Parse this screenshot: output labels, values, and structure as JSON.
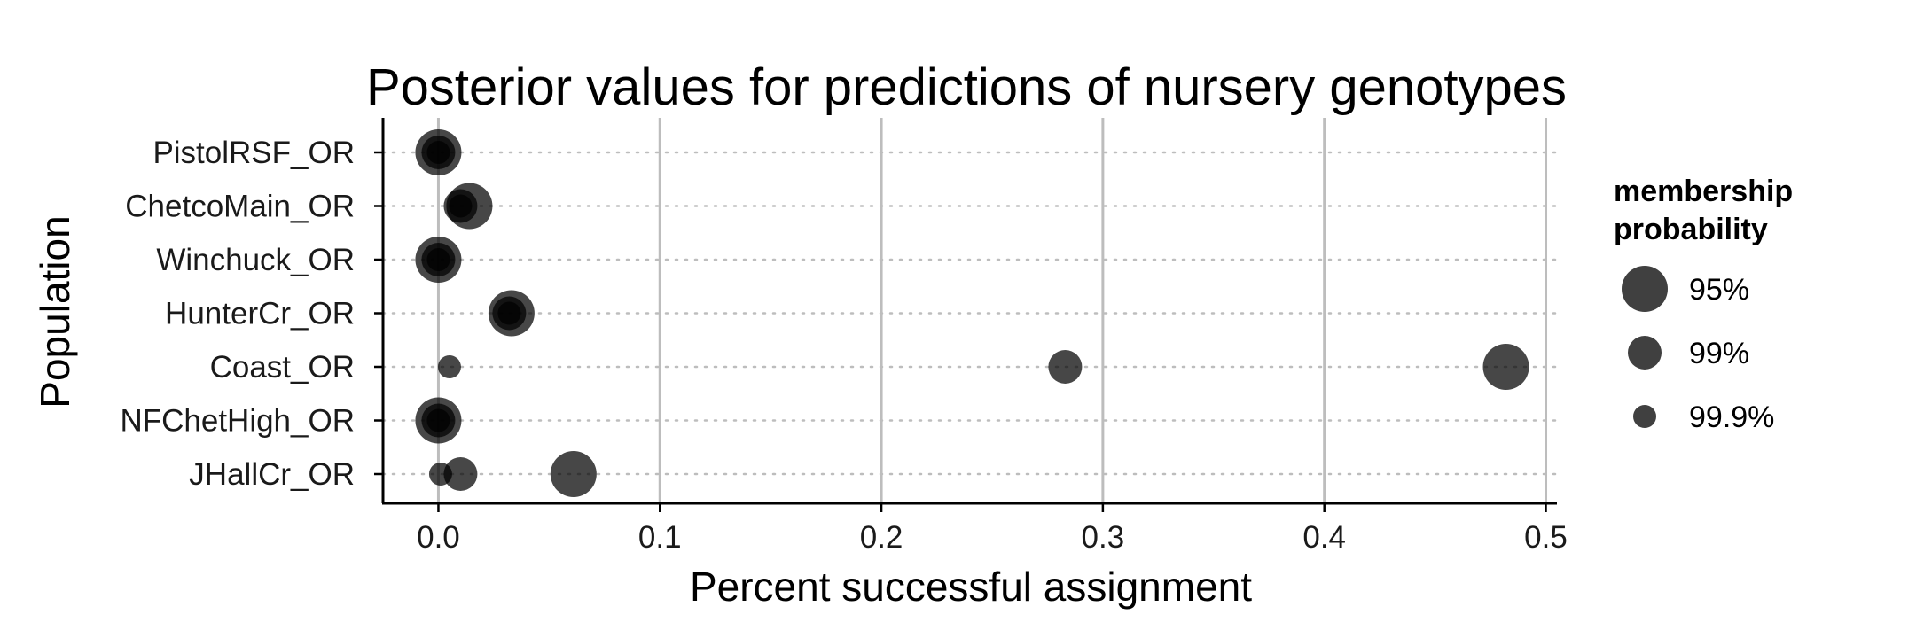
{
  "chart_data": {
    "type": "scatter",
    "title": "Posterior values for predictions of nursery genotypes",
    "xlabel": "Percent successful assignment",
    "ylabel": "Population",
    "xlim": [
      -0.025,
      0.505
    ],
    "x_ticks": [
      0.0,
      0.1,
      0.2,
      0.3,
      0.4,
      0.5
    ],
    "x_tick_labels": [
      "0.0",
      "0.1",
      "0.2",
      "0.3",
      "0.4",
      "0.5"
    ],
    "categories": [
      "PistolRSF_OR",
      "ChetcoMain_OR",
      "Winchuck_OR",
      "HunterCr_OR",
      "Coast_OR",
      "NFChetHigh_OR",
      "JHallCr_OR"
    ],
    "grid": {
      "vertical_major": true,
      "horizontal_dotted": true
    },
    "legend": {
      "title_lines": [
        "membership",
        "probability"
      ],
      "position": "right",
      "entries": [
        {
          "label": "95%",
          "size": "large"
        },
        {
          "label": "99%",
          "size": "medium"
        },
        {
          "label": "99.9%",
          "size": "small"
        }
      ]
    },
    "points": [
      {
        "population": "PistolRSF_OR",
        "x": 0.0,
        "probability": "95%"
      },
      {
        "population": "PistolRSF_OR",
        "x": 0.0,
        "probability": "99%"
      },
      {
        "population": "PistolRSF_OR",
        "x": 0.0,
        "probability": "99.9%"
      },
      {
        "population": "ChetcoMain_OR",
        "x": 0.014,
        "probability": "95%"
      },
      {
        "population": "ChetcoMain_OR",
        "x": 0.01,
        "probability": "99%"
      },
      {
        "population": "ChetcoMain_OR",
        "x": 0.01,
        "probability": "99.9%"
      },
      {
        "population": "Winchuck_OR",
        "x": 0.0,
        "probability": "95%"
      },
      {
        "population": "Winchuck_OR",
        "x": 0.0,
        "probability": "99%"
      },
      {
        "population": "Winchuck_OR",
        "x": 0.0,
        "probability": "99.9%"
      },
      {
        "population": "HunterCr_OR",
        "x": 0.033,
        "probability": "95%"
      },
      {
        "population": "HunterCr_OR",
        "x": 0.032,
        "probability": "99%"
      },
      {
        "population": "HunterCr_OR",
        "x": 0.032,
        "probability": "99.9%"
      },
      {
        "population": "Coast_OR",
        "x": 0.482,
        "probability": "95%"
      },
      {
        "population": "Coast_OR",
        "x": 0.283,
        "probability": "99%"
      },
      {
        "population": "Coast_OR",
        "x": 0.005,
        "probability": "99.9%"
      },
      {
        "population": "NFChetHigh_OR",
        "x": 0.0,
        "probability": "95%"
      },
      {
        "population": "NFChetHigh_OR",
        "x": 0.0,
        "probability": "99%"
      },
      {
        "population": "NFChetHigh_OR",
        "x": 0.0,
        "probability": "99.9%"
      },
      {
        "population": "JHallCr_OR",
        "x": 0.061,
        "probability": "95%"
      },
      {
        "population": "JHallCr_OR",
        "x": 0.01,
        "probability": "99%"
      },
      {
        "population": "JHallCr_OR",
        "x": 0.001,
        "probability": "99.9%"
      }
    ]
  }
}
